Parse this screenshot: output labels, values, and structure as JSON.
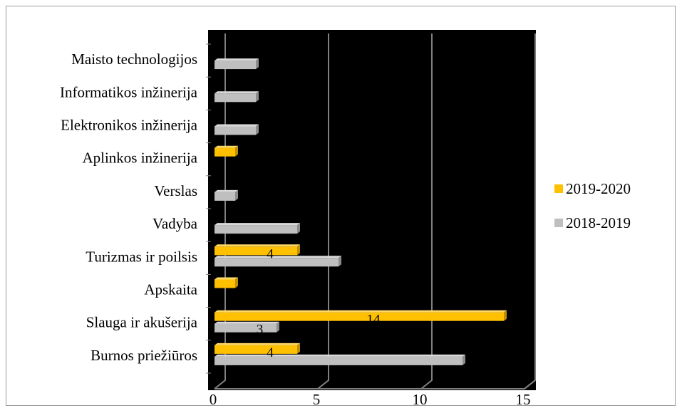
{
  "chart_data": {
    "type": "bar",
    "orientation": "horizontal",
    "categories": [
      "Burnos priežiūros",
      "Slauga ir akušerija",
      "Apskaita",
      "Turizmas ir poilsis",
      "Vadyba",
      "Verslas",
      "Aplinkos inžinerija",
      "Elektronikos inžinerija",
      "Informatikos inžinerija",
      "Maisto technologijos"
    ],
    "series": [
      {
        "name": "2019-2020",
        "color": "#FFC000",
        "values": [
          4,
          14,
          1,
          4,
          0,
          0,
          1,
          0,
          0,
          0
        ]
      },
      {
        "name": "2018-2019",
        "color": "#BFBFBF",
        "values": [
          12,
          3,
          0,
          6,
          4,
          1,
          0,
          2,
          2,
          2
        ]
      }
    ],
    "xlim": [
      0,
      15
    ],
    "x_ticks": [
      0,
      5,
      10,
      15
    ],
    "x_tick_labels": [
      "0",
      "5",
      "10",
      "15"
    ],
    "grid": "vertical",
    "legend_position": "right",
    "background": "#000000",
    "partial_data_labels": [
      {
        "category": "Burnos priežiūros",
        "series": "2019-2020",
        "text": "4"
      },
      {
        "category": "Slauga ir akušerija",
        "series": "2018-2019",
        "text": "3"
      },
      {
        "category": "Slauga ir akušerija",
        "series": "2019-2020",
        "text": "14"
      },
      {
        "category": "Turizmas ir poilsis",
        "series": "2019-2020",
        "text": "4"
      }
    ]
  }
}
